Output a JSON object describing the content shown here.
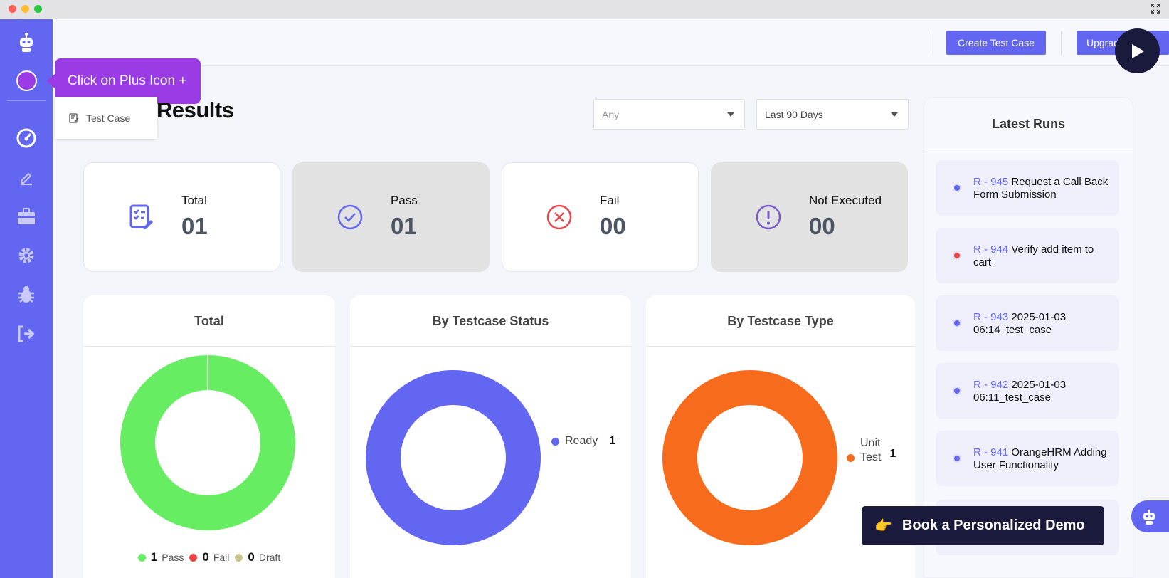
{
  "tooltip": {
    "text": "Click on Plus Icon +"
  },
  "header": {
    "create_button": "Create Test Case",
    "upgrade_button": "Upgrade"
  },
  "tab": {
    "label": "Test Case"
  },
  "page": {
    "title": "Results"
  },
  "filters": {
    "status_select": "Any",
    "range_select": "Last 90 Days"
  },
  "stats": [
    {
      "label": "Total",
      "value": "01"
    },
    {
      "label": "Pass",
      "value": "01"
    },
    {
      "label": "Fail",
      "value": "00"
    },
    {
      "label": "Not Executed",
      "value": "00"
    }
  ],
  "charts": {
    "total": {
      "title": "Total",
      "legend": [
        {
          "count": "1",
          "label": "Pass",
          "color": "#66ed62"
        },
        {
          "count": "0",
          "label": "Fail",
          "color": "#ef4444"
        },
        {
          "count": "0",
          "label": "Draft",
          "color": "#c8c58a"
        }
      ]
    },
    "status": {
      "title": "By Testcase Status",
      "legend": [
        {
          "label": "Ready",
          "count": "1",
          "color": "#6366f1"
        }
      ]
    },
    "type": {
      "title": "By Testcase Type",
      "legend": [
        {
          "label_line1": "Unit",
          "label_line2": "Test",
          "count": "1",
          "color": "#f76b1c"
        }
      ]
    }
  },
  "chart_data": [
    {
      "type": "pie",
      "title": "Total",
      "categories": [
        "Pass",
        "Fail",
        "Draft"
      ],
      "values": [
        1,
        0,
        0
      ]
    },
    {
      "type": "pie",
      "title": "By Testcase Status",
      "categories": [
        "Ready"
      ],
      "values": [
        1
      ]
    },
    {
      "type": "pie",
      "title": "By Testcase Type",
      "categories": [
        "Unit Test"
      ],
      "values": [
        1
      ]
    }
  ],
  "runs": {
    "title": "Latest Runs",
    "items": [
      {
        "id": "R - 945",
        "name": "Request a Call Back Form Submission",
        "status_color": "#6366f1"
      },
      {
        "id": "R - 944",
        "name": "Verify add item to cart",
        "status_color": "#ef4444"
      },
      {
        "id": "R - 943",
        "name": "2025-01-03 06:14_test_case",
        "status_color": "#6366f1"
      },
      {
        "id": "R - 942",
        "name": "2025-01-03 06:11_test_case",
        "status_color": "#6366f1"
      },
      {
        "id": "R - 941",
        "name": "OrangeHRM Adding User Functionality",
        "status_color": "#6366f1"
      }
    ]
  },
  "demo": {
    "emoji": "👉",
    "label": "Book a Personalized Demo"
  },
  "colors": {
    "accent": "#6366f1",
    "pass": "#66ed62",
    "fail": "#ef4444",
    "type": "#f76b1c",
    "tooltip": "#9b3be6"
  }
}
